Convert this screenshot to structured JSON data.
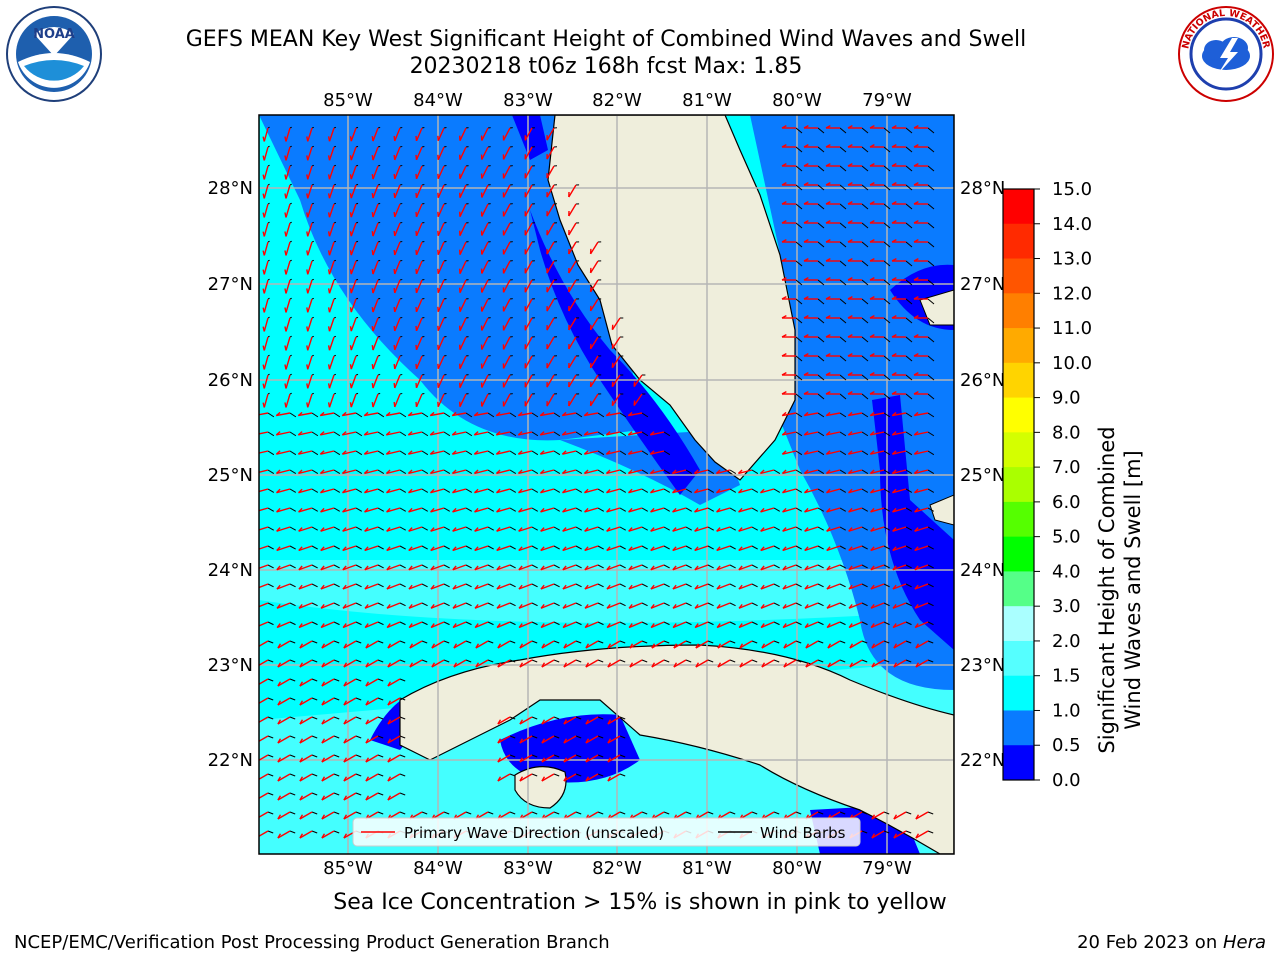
{
  "title": {
    "line1": "GEFS MEAN Key West Significant Height of Combined Wind Waves and Swell",
    "line2": "20230218 t06z 168h fcst   Max: 1.85"
  },
  "map": {
    "lon_labels": [
      "85°W",
      "84°W",
      "83°W",
      "82°W",
      "81°W",
      "80°W",
      "79°W"
    ],
    "lat_labels": [
      "28°N",
      "27°N",
      "26°N",
      "25°N",
      "24°N",
      "23°N",
      "22°N"
    ],
    "ocean_colors": {
      "deep": "#0000ff",
      "mid": "#0a7bff",
      "light": "#00ffff",
      "pale": "#44ffff",
      "land": "#efeedc"
    },
    "legend": {
      "wave_direction": "Primary Wave Direction (unscaled)",
      "wind_barbs": "Wind Barbs",
      "wave_color": "#ff0000",
      "barb_color": "#000000"
    }
  },
  "colorbar": {
    "label_line1": "Significant Height of Combined",
    "label_line2": "Wind Waves and Swell [m]",
    "ticks": [
      "15.0",
      "14.0",
      "13.0",
      "12.0",
      "11.0",
      "10.0",
      "9.0",
      "8.0",
      "7.0",
      "6.0",
      "5.0",
      "4.0",
      "3.0",
      "2.0",
      "1.5",
      "1.0",
      "0.5",
      "0.0"
    ],
    "colors": [
      "#ff0000",
      "#ff2a00",
      "#ff5500",
      "#ff7f00",
      "#ffaa00",
      "#ffd400",
      "#ffff00",
      "#d4ff00",
      "#aaff00",
      "#55ff00",
      "#00ff00",
      "#55ff88",
      "#aaffff",
      "#55ffff",
      "#00ffff",
      "#0a7bff",
      "#0000ff"
    ]
  },
  "logos": {
    "noaa_text": "NOAA",
    "nws_text": "NATIONAL WEATHER SERVICE"
  },
  "caption": "Sea Ice Concentration > 15% is shown in pink to yellow",
  "footer": {
    "left": "NCEP/EMC/Verification Post Processing Product Generation Branch",
    "right_prefix": "20 Feb 2023 on ",
    "right_host": "Hera"
  }
}
